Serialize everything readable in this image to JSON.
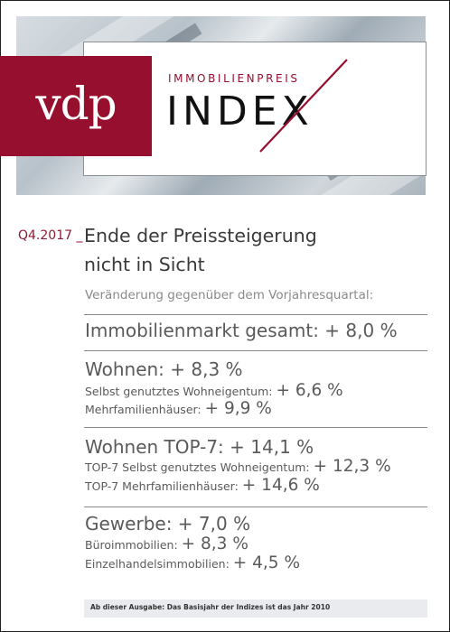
{
  "header": {
    "logo": "vdp",
    "brand_sub": "IMMOBILIENPREIS",
    "brand_main": "INDEX",
    "brand_color": "#960f2e"
  },
  "quarter": "Q4.2017 _",
  "headline": [
    "Ende der Preissteigerung",
    "nicht in Sicht"
  ],
  "intro": "Veränderung gegenüber dem Vorjahresquartal:",
  "sections": {
    "total": {
      "label": "Immobilienmarkt gesamt: ",
      "value": "+ 8,0 %"
    },
    "wohnen": {
      "label": "Wohnen: ",
      "value": "+ 8,3 %",
      "items": [
        {
          "label": "Selbst genutztes Wohneigentum: ",
          "value": "+ 6,6 %"
        },
        {
          "label": "Mehrfamilienhäuser: ",
          "value": "+ 9,9 %"
        }
      ]
    },
    "top7": {
      "label": "Wohnen TOP-7: ",
      "value": "+ 14,1 %",
      "items": [
        {
          "label": "TOP-7 Selbst genutztes Wohneigentum: ",
          "value": "+ 12,3 %"
        },
        {
          "label": "TOP-7 Mehrfamilienhäuser: ",
          "value": "+ 14,6 %"
        }
      ]
    },
    "gewerbe": {
      "label": "Gewerbe: ",
      "value": "+ 7,0 %",
      "items": [
        {
          "label": "Büroimmobilien: ",
          "value": "+ 8,3 %"
        },
        {
          "label": "Einzelhandelsimmobilien: ",
          "value": "+ 4,5 %"
        }
      ]
    }
  },
  "footer": "Ab dieser Ausgabe: Das Basisjahr der Indizes ist das Jahr 2010"
}
